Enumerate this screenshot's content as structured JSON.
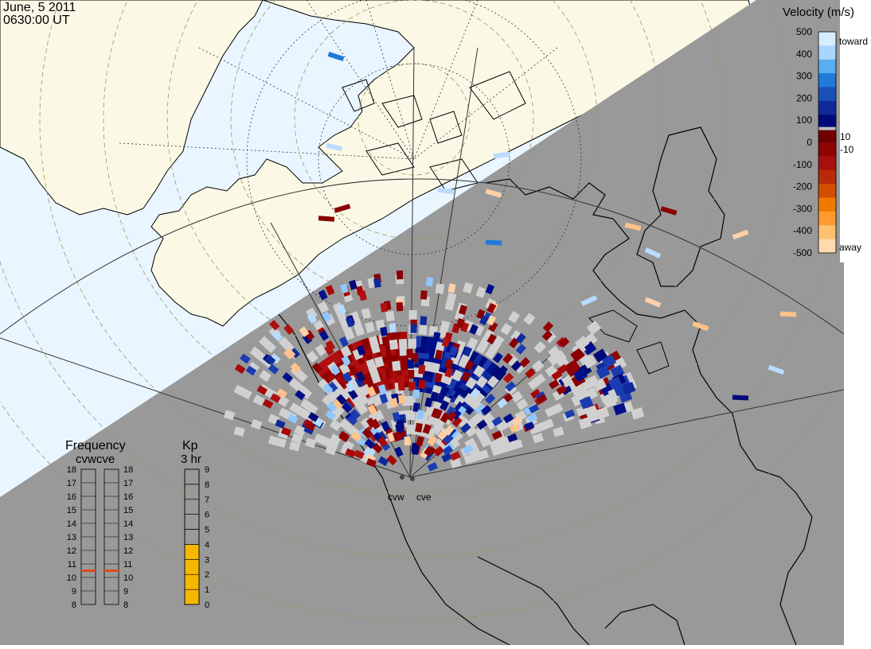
{
  "header": {
    "date": "June, 5 2011",
    "time": "0630:00 UT"
  },
  "velocity_scale": {
    "title": "Velocity (m/s)",
    "ticks": [
      "500",
      "400",
      "300",
      "200",
      "100",
      "0",
      "-100",
      "-200",
      "-300",
      "-400",
      "-500"
    ],
    "toward_label": "toward",
    "away_label": "away",
    "threshold_pos": "10",
    "threshold_neg": "-10",
    "colors": [
      "#d6ecff",
      "#a8d6ff",
      "#5aaef0",
      "#1f7ad8",
      "#1a4fb8",
      "#0f2a9a",
      "#000a78",
      "#6e0000",
      "#900404",
      "#a81010",
      "#b82a08",
      "#d44e00",
      "#f07a00",
      "#ff9a30",
      "#ffc070",
      "#ffdab0"
    ]
  },
  "frequency_panel": {
    "title": "Frequency",
    "subtitle": "cvwcve",
    "ticks": [
      "18",
      "17",
      "16",
      "15",
      "14",
      "13",
      "12",
      "11",
      "10",
      "9",
      "8"
    ],
    "cvw_mhz": 10.5,
    "cve_mhz": 10.5,
    "marker_color": "#e04a1a"
  },
  "kp_panel": {
    "title": "Kp",
    "subtitle": "3 hr",
    "ticks": [
      "9",
      "8",
      "7",
      "6",
      "5",
      "4",
      "3",
      "2",
      "1",
      "0"
    ],
    "value": 4,
    "fill_color": "#f5b800"
  },
  "radars": {
    "cvw": "cvw",
    "cve": "cve"
  },
  "colors": {
    "night": "#999999",
    "day_ocean": "#eaf6ff",
    "day_land": "#fbf9e6",
    "coast": "#000000",
    "gray_scatter": "#d0d0d0"
  }
}
